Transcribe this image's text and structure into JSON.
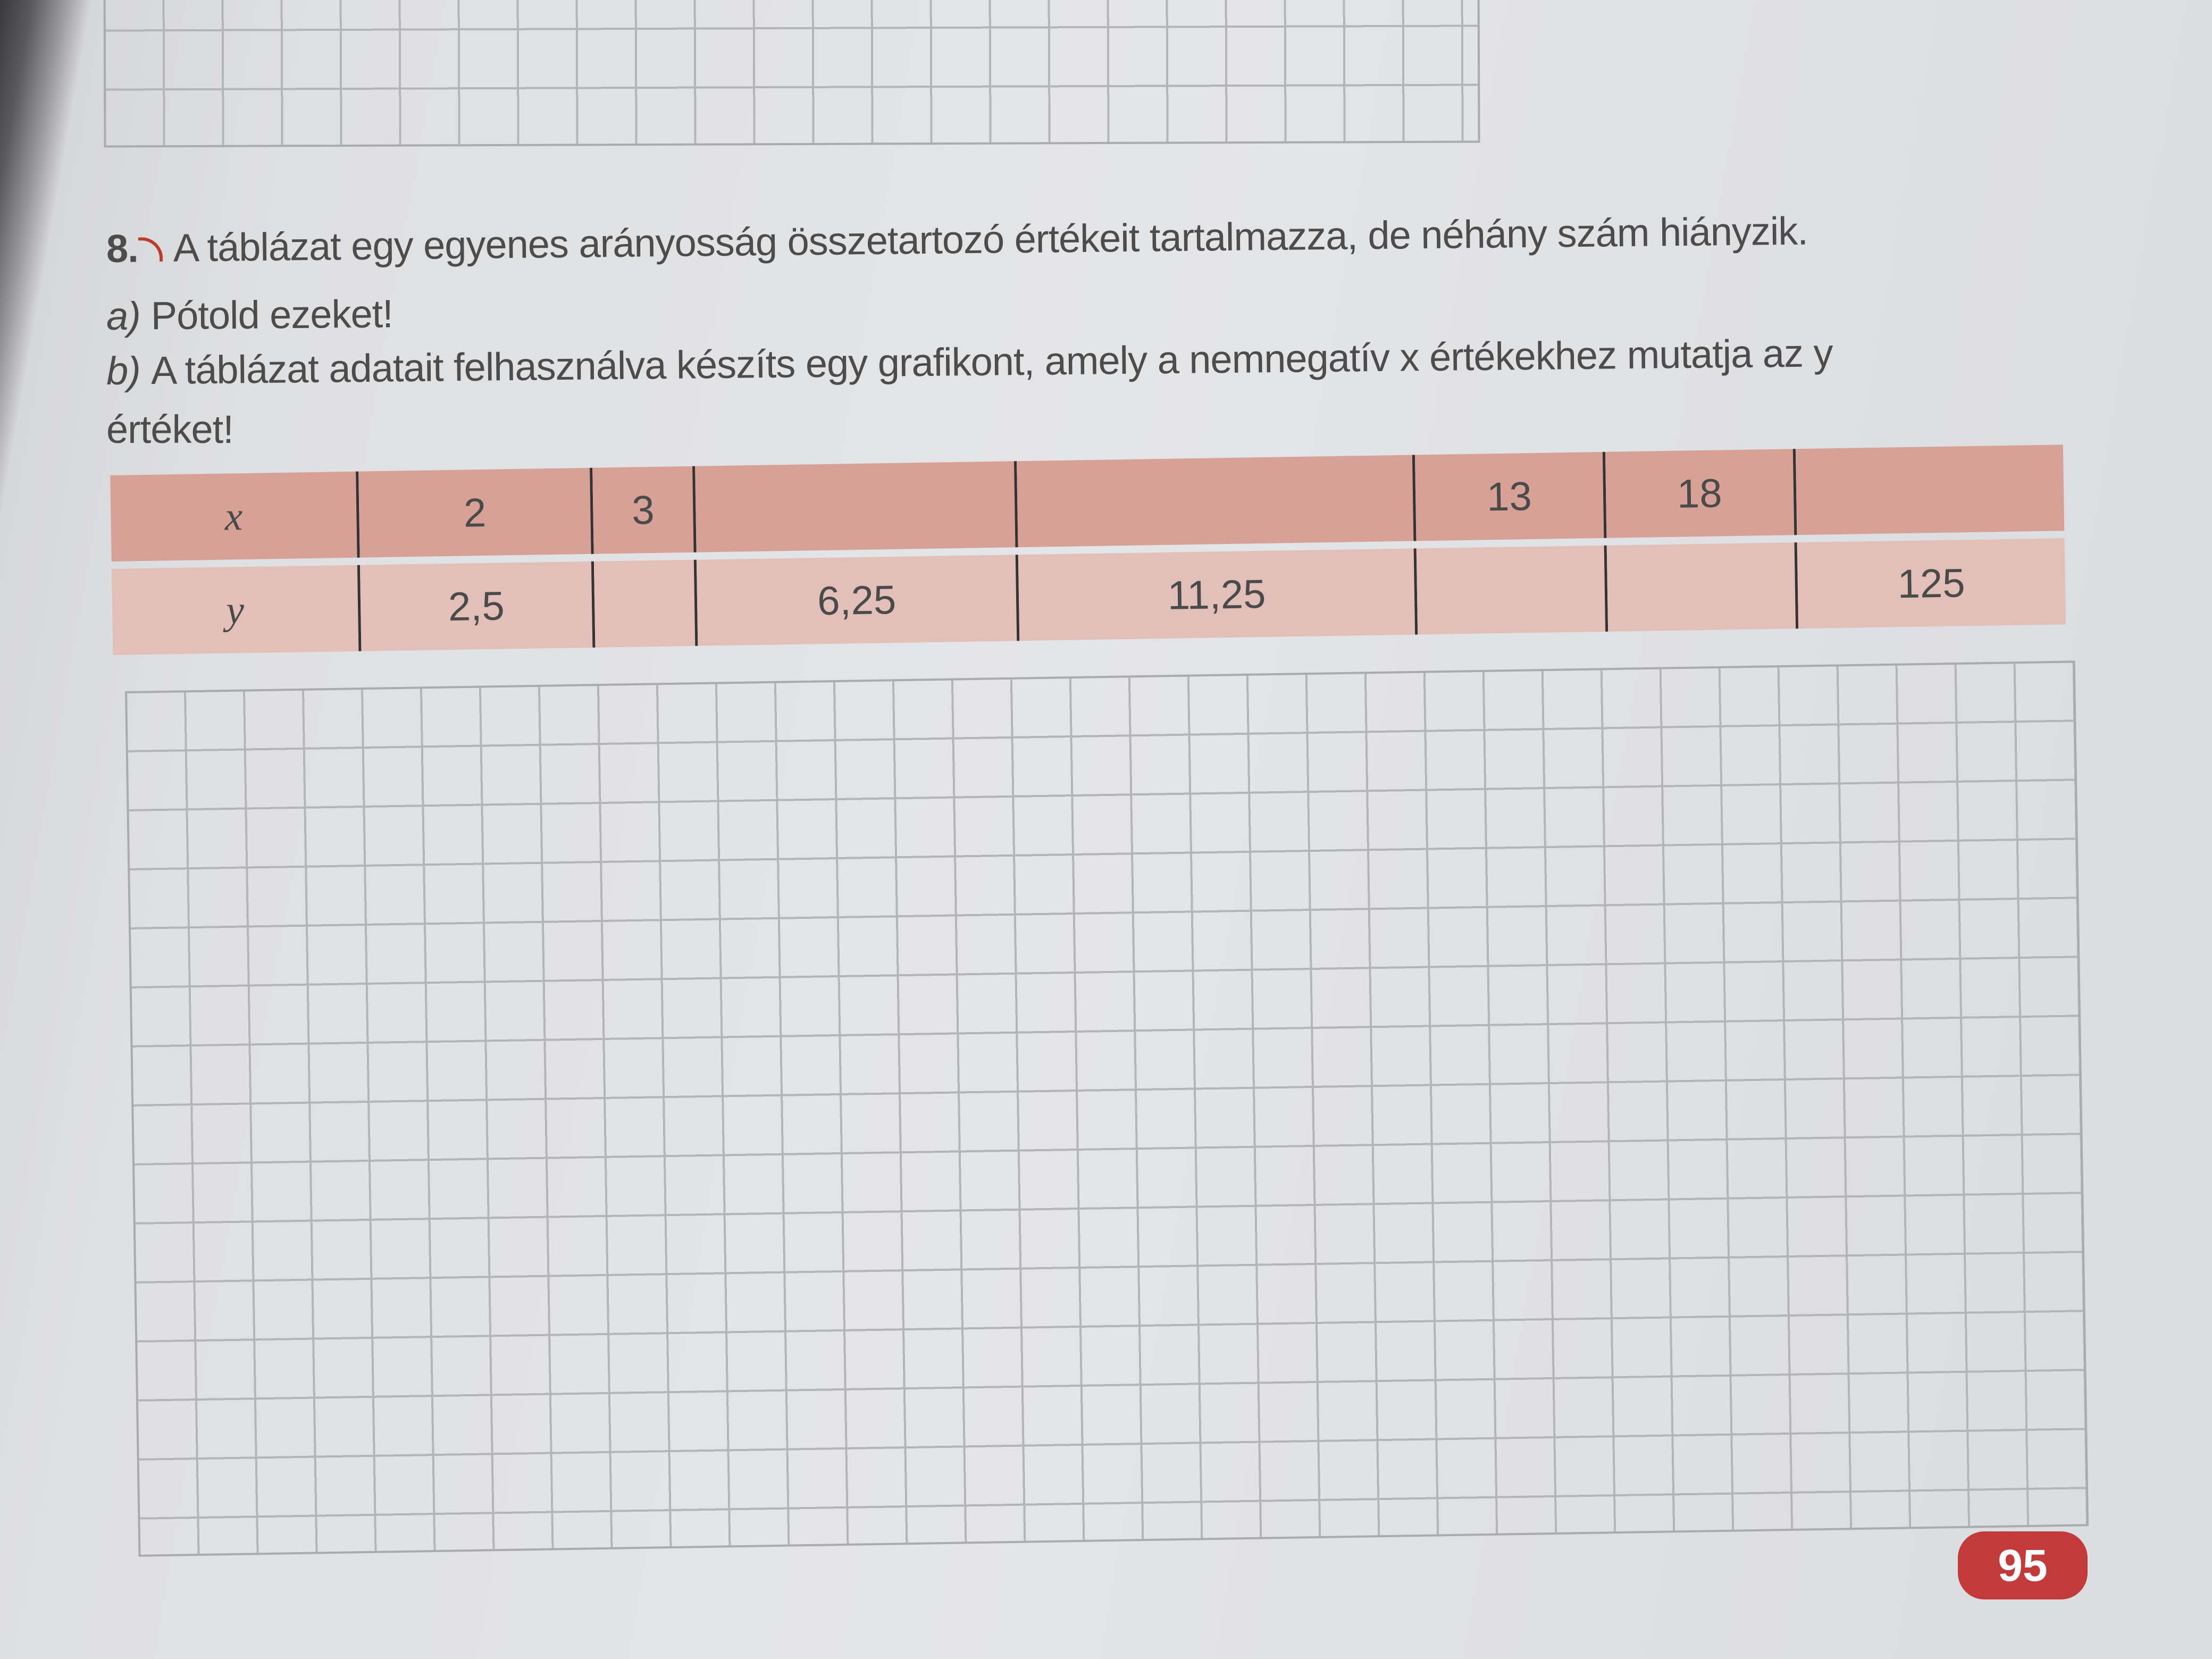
{
  "exercise": {
    "number": "8.",
    "icon": "audio-speaker-icon",
    "statement": "A táblázat egy egyenes arányosság összetartozó értékeit tartalmazza, de néhány szám hiányzik.",
    "part_a": {
      "label": "a)",
      "text": "Pótold ezeket!"
    },
    "part_b": {
      "label": "b)",
      "text": "A táblázat adatait felhasználva készíts egy grafikont, amely a nemnegatív x értékekhez mutatja az y",
      "text_cont": "értéket!"
    }
  },
  "table": {
    "x_label": "x",
    "y_label": "y",
    "x_values": [
      "2",
      "3",
      "",
      "",
      "13",
      "18",
      ""
    ],
    "y_values": [
      "2,5",
      "",
      "6,25",
      "11,25",
      "",
      "",
      "125"
    ]
  },
  "page_number": "95",
  "colors": {
    "header_row": "#d8a198",
    "value_row": "#e2bfb9",
    "page_badge": "#c23a3a"
  }
}
